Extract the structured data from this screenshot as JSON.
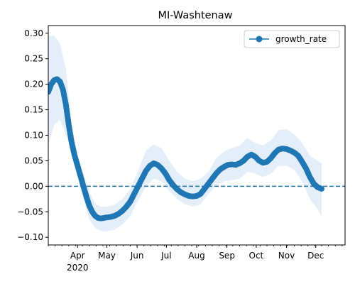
{
  "chart_data": {
    "type": "line",
    "title": "MI-Washtenaw",
    "xlabel": "",
    "ylabel": "",
    "x_range": [
      "2020-03-02",
      "2020-12-31"
    ],
    "ylim": [
      -0.115,
      0.315
    ],
    "y_ticks": [
      -0.1,
      -0.05,
      0.0,
      0.05,
      0.1,
      0.15,
      0.2,
      0.25,
      0.3
    ],
    "y_tick_labels": [
      "−0.10",
      "−0.05",
      "0.00",
      "0.05",
      "0.10",
      "0.15",
      "0.20",
      "0.25",
      "0.30"
    ],
    "x_ticks": [
      {
        "date": "2020-04-01",
        "label": "Apr"
      },
      {
        "date": "2020-05-01",
        "label": "May"
      },
      {
        "date": "2020-06-01",
        "label": "Jun"
      },
      {
        "date": "2020-07-01",
        "label": "Jul"
      },
      {
        "date": "2020-08-01",
        "label": "Aug"
      },
      {
        "date": "2020-09-01",
        "label": "Sep"
      },
      {
        "date": "2020-10-01",
        "label": "Oct"
      },
      {
        "date": "2020-11-01",
        "label": "Nov"
      },
      {
        "date": "2020-12-01",
        "label": "Dec"
      }
    ],
    "x_year_label": {
      "date": "2020-04-01",
      "label": "2020"
    },
    "grid": false,
    "legend_position": "top-right",
    "reference_line": {
      "y": 0,
      "style": "dashed"
    },
    "colors": {
      "series": "#1f77b4",
      "band": "#dbe8f5"
    },
    "series": [
      {
        "name": "growth_rate",
        "points": [
          [
            "2020-03-02",
            0.185
          ],
          [
            "2020-03-05",
            0.2
          ],
          [
            "2020-03-08",
            0.208
          ],
          [
            "2020-03-11",
            0.21
          ],
          [
            "2020-03-14",
            0.205
          ],
          [
            "2020-03-17",
            0.19
          ],
          [
            "2020-03-20",
            0.16
          ],
          [
            "2020-03-23",
            0.12
          ],
          [
            "2020-03-26",
            0.085
          ],
          [
            "2020-03-29",
            0.06
          ],
          [
            "2020-04-01",
            0.04
          ],
          [
            "2020-04-04",
            0.02
          ],
          [
            "2020-04-07",
            0.0
          ],
          [
            "2020-04-10",
            -0.02
          ],
          [
            "2020-04-13",
            -0.038
          ],
          [
            "2020-04-16",
            -0.05
          ],
          [
            "2020-04-19",
            -0.058
          ],
          [
            "2020-04-22",
            -0.062
          ],
          [
            "2020-04-25",
            -0.063
          ],
          [
            "2020-04-28",
            -0.062
          ],
          [
            "2020-05-01",
            -0.061
          ],
          [
            "2020-05-05",
            -0.06
          ],
          [
            "2020-05-09",
            -0.058
          ],
          [
            "2020-05-13",
            -0.054
          ],
          [
            "2020-05-17",
            -0.048
          ],
          [
            "2020-05-21",
            -0.04
          ],
          [
            "2020-05-25",
            -0.03
          ],
          [
            "2020-05-29",
            -0.015
          ],
          [
            "2020-06-02",
            0.0
          ],
          [
            "2020-06-06",
            0.015
          ],
          [
            "2020-06-10",
            0.03
          ],
          [
            "2020-06-14",
            0.04
          ],
          [
            "2020-06-18",
            0.045
          ],
          [
            "2020-06-22",
            0.042
          ],
          [
            "2020-06-26",
            0.035
          ],
          [
            "2020-06-30",
            0.025
          ],
          [
            "2020-07-04",
            0.012
          ],
          [
            "2020-07-08",
            0.002
          ],
          [
            "2020-07-12",
            -0.006
          ],
          [
            "2020-07-16",
            -0.012
          ],
          [
            "2020-07-20",
            -0.016
          ],
          [
            "2020-07-24",
            -0.019
          ],
          [
            "2020-07-28",
            -0.02
          ],
          [
            "2020-08-01",
            -0.019
          ],
          [
            "2020-08-05",
            -0.015
          ],
          [
            "2020-08-09",
            -0.005
          ],
          [
            "2020-08-13",
            0.005
          ],
          [
            "2020-08-17",
            0.015
          ],
          [
            "2020-08-21",
            0.025
          ],
          [
            "2020-08-25",
            0.033
          ],
          [
            "2020-08-29",
            0.038
          ],
          [
            "2020-09-02",
            0.042
          ],
          [
            "2020-09-06",
            0.043
          ],
          [
            "2020-09-10",
            0.042
          ],
          [
            "2020-09-14",
            0.045
          ],
          [
            "2020-09-18",
            0.05
          ],
          [
            "2020-09-22",
            0.058
          ],
          [
            "2020-09-26",
            0.062
          ],
          [
            "2020-09-30",
            0.058
          ],
          [
            "2020-10-04",
            0.05
          ],
          [
            "2020-10-08",
            0.046
          ],
          [
            "2020-10-12",
            0.048
          ],
          [
            "2020-10-16",
            0.055
          ],
          [
            "2020-10-20",
            0.065
          ],
          [
            "2020-10-24",
            0.072
          ],
          [
            "2020-10-28",
            0.074
          ],
          [
            "2020-11-01",
            0.073
          ],
          [
            "2020-11-05",
            0.07
          ],
          [
            "2020-11-09",
            0.066
          ],
          [
            "2020-11-13",
            0.06
          ],
          [
            "2020-11-17",
            0.048
          ],
          [
            "2020-11-21",
            0.035
          ],
          [
            "2020-11-25",
            0.018
          ],
          [
            "2020-11-29",
            0.005
          ],
          [
            "2020-12-03",
            -0.002
          ],
          [
            "2020-12-07",
            -0.005
          ]
        ],
        "band": [
          [
            "2020-03-02",
            0.08,
            0.295
          ],
          [
            "2020-03-08",
            0.12,
            0.295
          ],
          [
            "2020-03-14",
            0.13,
            0.28
          ],
          [
            "2020-03-20",
            0.1,
            0.23
          ],
          [
            "2020-03-26",
            0.07,
            0.12
          ],
          [
            "2020-04-01",
            0.02,
            0.062
          ],
          [
            "2020-04-07",
            -0.025,
            0.025
          ],
          [
            "2020-04-13",
            -0.065,
            -0.01
          ],
          [
            "2020-04-19",
            -0.082,
            -0.035
          ],
          [
            "2020-04-25",
            -0.088,
            -0.04
          ],
          [
            "2020-05-01",
            -0.088,
            -0.04
          ],
          [
            "2020-05-09",
            -0.085,
            -0.036
          ],
          [
            "2020-05-17",
            -0.075,
            -0.025
          ],
          [
            "2020-05-25",
            -0.058,
            -0.005
          ],
          [
            "2020-06-02",
            -0.028,
            0.03
          ],
          [
            "2020-06-10",
            0.0,
            0.07
          ],
          [
            "2020-06-18",
            0.015,
            0.082
          ],
          [
            "2020-06-26",
            0.01,
            0.075
          ],
          [
            "2020-07-04",
            -0.01,
            0.05
          ],
          [
            "2020-07-12",
            -0.025,
            0.028
          ],
          [
            "2020-07-20",
            -0.035,
            0.015
          ],
          [
            "2020-07-28",
            -0.04,
            0.01
          ],
          [
            "2020-08-05",
            -0.035,
            0.015
          ],
          [
            "2020-08-13",
            -0.015,
            0.028
          ],
          [
            "2020-08-21",
            0.002,
            0.055
          ],
          [
            "2020-08-29",
            0.01,
            0.068
          ],
          [
            "2020-09-06",
            0.012,
            0.075
          ],
          [
            "2020-09-14",
            0.015,
            0.08
          ],
          [
            "2020-09-22",
            0.028,
            0.095
          ],
          [
            "2020-09-30",
            0.025,
            0.085
          ],
          [
            "2020-10-08",
            0.018,
            0.08
          ],
          [
            "2020-10-16",
            0.025,
            0.09
          ],
          [
            "2020-10-24",
            0.04,
            0.11
          ],
          [
            "2020-11-01",
            0.04,
            0.112
          ],
          [
            "2020-11-09",
            0.032,
            0.102
          ],
          [
            "2020-11-17",
            0.01,
            0.085
          ],
          [
            "2020-11-25",
            -0.025,
            0.06
          ],
          [
            "2020-12-03",
            -0.045,
            0.05
          ],
          [
            "2020-12-07",
            -0.06,
            0.045
          ]
        ]
      }
    ]
  }
}
